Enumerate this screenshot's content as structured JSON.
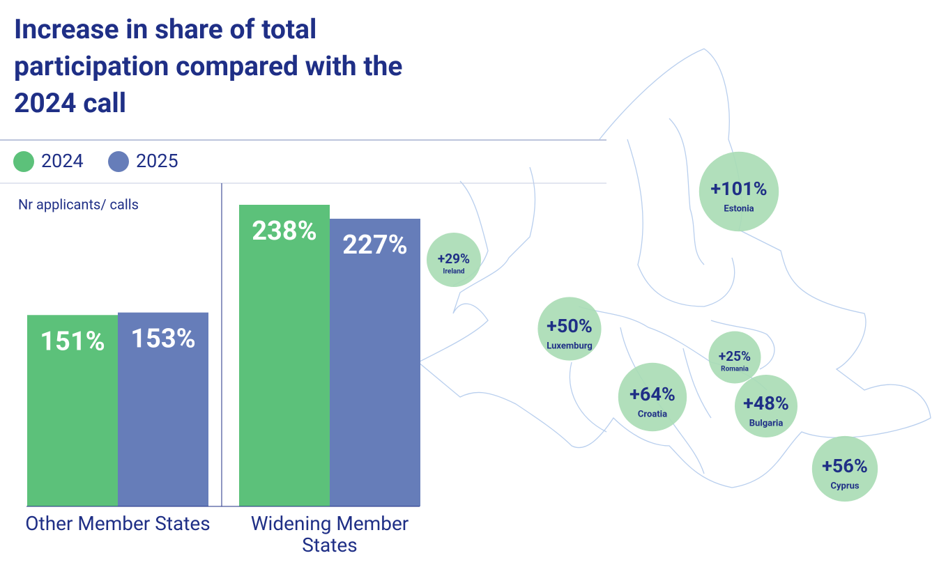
{
  "chart_data": [
    {
      "type": "bar",
      "title": "Increase in share of total participation compared with the 2024 call",
      "y_label": "Nr applicants/ calls",
      "categories": [
        "Other Member States",
        "Widening Member States"
      ],
      "series": [
        {
          "name": "2024",
          "color": "#5cc17a",
          "values": [
            151,
            238
          ],
          "value_labels": [
            "151%",
            "238%"
          ]
        },
        {
          "name": "2025",
          "color": "#667db9",
          "values": [
            153,
            227
          ],
          "value_labels": [
            "153%",
            "227%"
          ]
        }
      ]
    },
    {
      "type": "bubble-map",
      "color": "#a8dcb4",
      "categories": [
        "Estonia",
        "Ireland",
        "Luxemburg",
        "Romania",
        "Croatia",
        "Bulgaria",
        "Cyprus"
      ],
      "values": [
        101,
        29,
        50,
        25,
        64,
        48,
        56
      ],
      "value_labels": [
        "+101%",
        "+29%",
        "+50%",
        "+25%",
        "+64%",
        "+48%",
        "+56%"
      ]
    }
  ]
}
